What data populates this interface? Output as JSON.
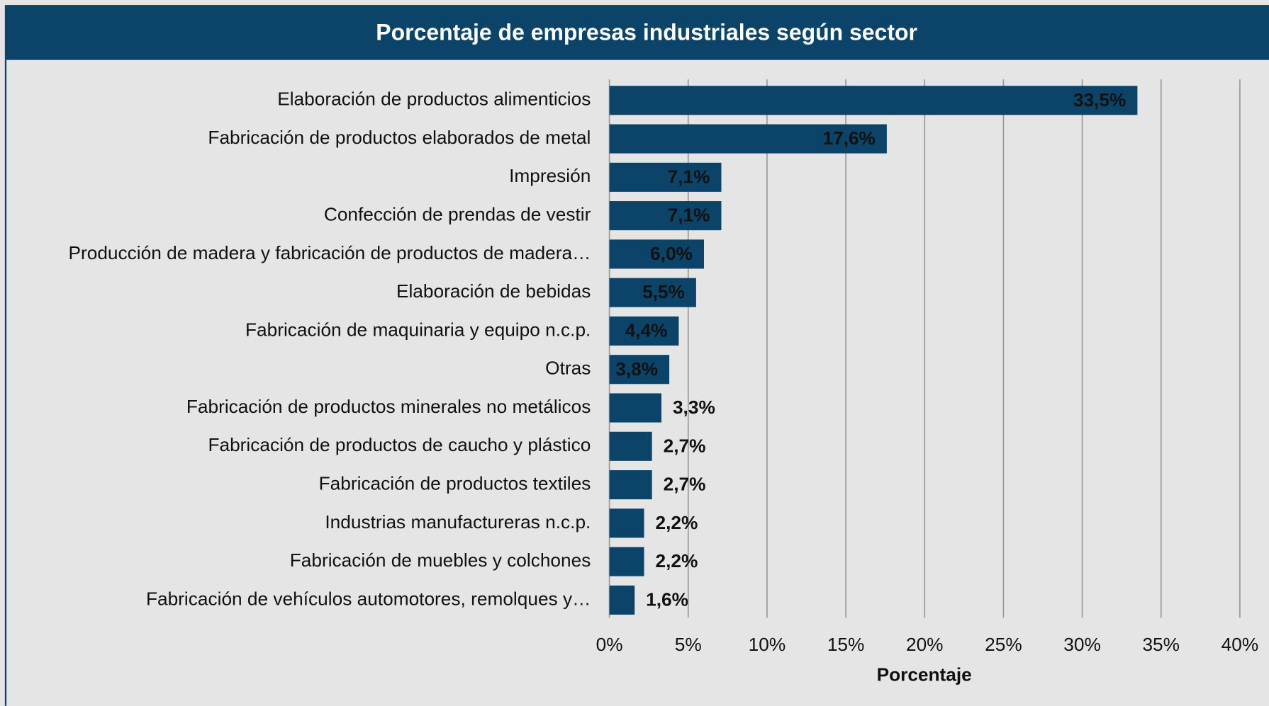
{
  "chart_data": {
    "type": "bar",
    "orientation": "horizontal",
    "title": "Porcentaje de empresas industriales según sector",
    "xlabel": "Porcentaje",
    "categories": [
      "Elaboración de productos alimenticios",
      "Fabricación de productos elaborados de metal",
      "Impresión",
      "Confección de prendas de vestir",
      "Producción de madera y fabricación de productos de madera…",
      "Elaboración de bebidas",
      "Fabricación de maquinaria y equipo n.c.p.",
      "Otras",
      "Fabricación de productos minerales no metálicos",
      "Fabricación de productos de caucho y plástico",
      "Fabricación de productos textiles",
      "Industrias manufactureras n.c.p.",
      "Fabricación de muebles y colchones",
      "Fabricación de vehículos automotores, remolques y…"
    ],
    "values": [
      33.5,
      17.6,
      7.1,
      7.1,
      6.0,
      5.5,
      4.4,
      3.8,
      3.3,
      2.7,
      2.7,
      2.2,
      2.2,
      1.6
    ],
    "value_labels": [
      "33,5%",
      "17,6%",
      "7,1%",
      "7,1%",
      "6,0%",
      "5,5%",
      "4,4%",
      "3,8%",
      "3,3%",
      "2,7%",
      "2,7%",
      "2,2%",
      "2,2%",
      "1,6%"
    ],
    "color": "#0b4468",
    "xlim": [
      0,
      40
    ],
    "xticks": [
      {
        "value": 0,
        "label": "0%"
      },
      {
        "value": 5,
        "label": "5%"
      },
      {
        "value": 10,
        "label": "10%"
      },
      {
        "value": 15,
        "label": "15%"
      },
      {
        "value": 20,
        "label": "20%"
      },
      {
        "value": 25,
        "label": "25%"
      },
      {
        "value": 30,
        "label": "30%"
      },
      {
        "value": 35,
        "label": "35%"
      },
      {
        "value": 40,
        "label": "40%"
      }
    ],
    "grid": true
  }
}
